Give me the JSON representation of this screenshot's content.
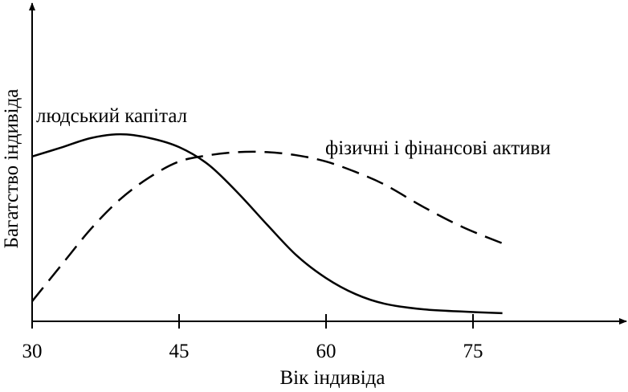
{
  "chart_data": {
    "type": "line",
    "xlabel": "Вік індивіда",
    "ylabel": "Багатство індивіда",
    "x": [
      30,
      33,
      36,
      39,
      42,
      45,
      48,
      51,
      54,
      57,
      60,
      63,
      66,
      70,
      74,
      78
    ],
    "series": [
      {
        "name": "людський капітал",
        "color": "#000000",
        "linestyle": "solid",
        "values": [
          52.6,
          55.5,
          58.5,
          59.7,
          58.5,
          55.6,
          50,
          41,
          30.8,
          21,
          13.8,
          8.7,
          5.6,
          3.8,
          3.1,
          2.6
        ]
      },
      {
        "name": "фізичні і фінансові активи",
        "color": "#000000",
        "linestyle": "dashed",
        "values": [
          6.4,
          18,
          29.5,
          39,
          46,
          51,
          53,
          54,
          54,
          53,
          51,
          47.7,
          43.6,
          36.4,
          30,
          24.9
        ]
      }
    ],
    "xlim": [
      30,
      90
    ],
    "ylim": [
      0,
      100
    ],
    "xticks": [
      30,
      45,
      60,
      75
    ]
  }
}
